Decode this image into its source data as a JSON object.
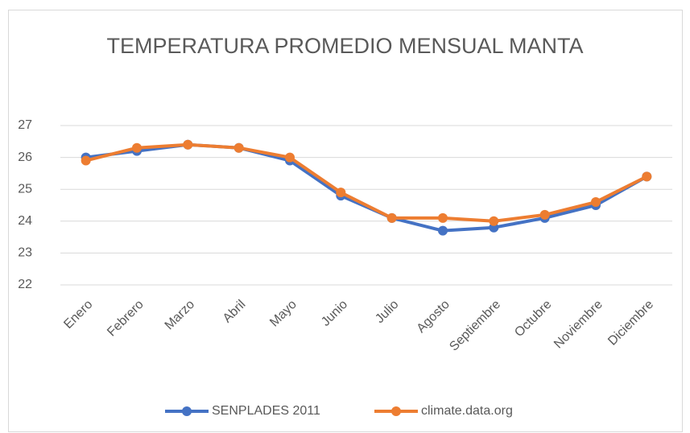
{
  "chart_data": {
    "type": "line",
    "title": "TEMPERATURA PROMEDIO MENSUAL MANTA",
    "categories": [
      "Enero",
      "Febrero",
      "Marzo",
      "Abril",
      "Mayo",
      "Junio",
      "Julio",
      "Agosto",
      "Septiembre",
      "Octubre",
      "Noviembre",
      "Diciembre"
    ],
    "series": [
      {
        "name": "SENPLADES 2011",
        "color": "#4472c4",
        "values": [
          26.0,
          26.2,
          26.4,
          26.3,
          25.9,
          24.8,
          24.1,
          23.7,
          23.8,
          24.1,
          24.5,
          25.4
        ]
      },
      {
        "name": "climate.data.org",
        "color": "#ed7d31",
        "values": [
          25.9,
          26.3,
          26.4,
          26.3,
          26.0,
          24.9,
          24.1,
          24.1,
          24.0,
          24.2,
          24.6,
          25.4
        ]
      }
    ],
    "ylim": [
      22,
      27
    ],
    "yticks": [
      22,
      23,
      24,
      25,
      26,
      27
    ],
    "grid": true,
    "legend": "bottom"
  }
}
